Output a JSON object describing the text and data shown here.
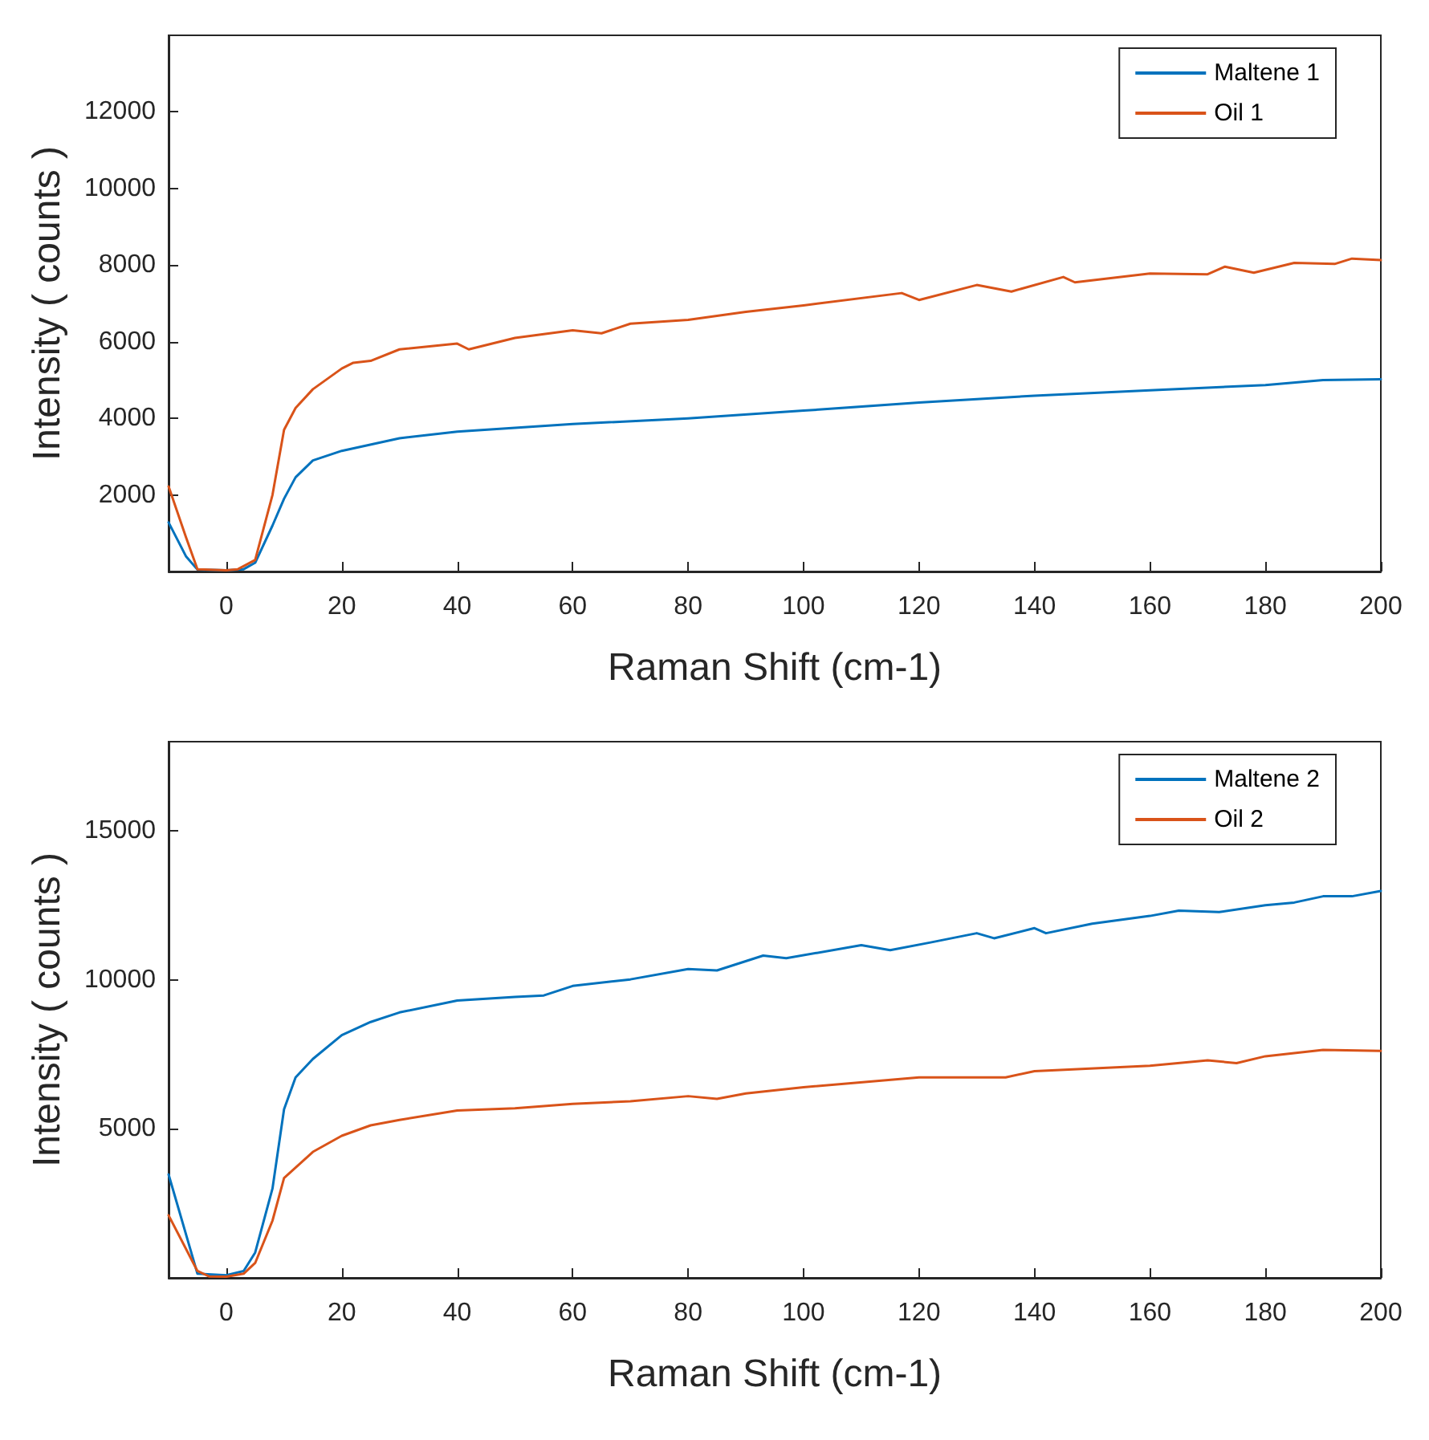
{
  "chart_data": [
    {
      "type": "line",
      "xlabel": "Raman Shift (cm-1)",
      "ylabel": "Intensity ( counts )",
      "xlim": [
        -10,
        200
      ],
      "xticks": [
        0,
        20,
        40,
        60,
        80,
        100,
        120,
        140,
        160,
        180,
        200
      ],
      "ylim": [
        0,
        14000
      ],
      "yticks": [
        2000,
        4000,
        6000,
        8000,
        10000,
        12000
      ],
      "legend": "top right",
      "grid": false,
      "line_style": "solid",
      "marker": "none",
      "series": [
        {
          "name": "Maltene 1",
          "color": "#0072bd",
          "x": [
            -10,
            -7,
            -5,
            0,
            3,
            5,
            8,
            10,
            12,
            15,
            20,
            30,
            40,
            60,
            80,
            100,
            120,
            140,
            160,
            180,
            190,
            200
          ],
          "values": [
            1280,
            400,
            50,
            30,
            60,
            230,
            1200,
            1900,
            2460,
            2900,
            3150,
            3480,
            3650,
            3850,
            4000,
            4200,
            4410,
            4590,
            4730,
            4870,
            5000,
            5020
          ]
        },
        {
          "name": "Oil 1",
          "color": "#d95319",
          "x": [
            -10,
            -7,
            -5,
            0,
            2,
            5,
            8,
            10,
            12,
            15,
            20,
            22,
            25,
            30,
            40,
            42,
            50,
            60,
            65,
            70,
            80,
            90,
            100,
            117,
            120,
            130,
            136,
            145,
            147,
            160,
            170,
            173,
            178,
            185,
            192,
            195,
            200
          ],
          "values": [
            2220,
            900,
            60,
            30,
            60,
            300,
            2000,
            3700,
            4270,
            4760,
            5300,
            5450,
            5500,
            5800,
            5950,
            5800,
            6100,
            6300,
            6220,
            6470,
            6570,
            6780,
            6950,
            7270,
            7090,
            7480,
            7310,
            7690,
            7550,
            7780,
            7760,
            7960,
            7800,
            8060,
            8030,
            8170,
            8130
          ]
        }
      ]
    },
    {
      "type": "line",
      "xlabel": "Raman Shift (cm-1)",
      "ylabel": "Intensity ( counts )",
      "xlim": [
        -10,
        200
      ],
      "xticks": [
        0,
        20,
        40,
        60,
        80,
        100,
        120,
        140,
        160,
        180,
        200
      ],
      "ylim": [
        0,
        18000
      ],
      "yticks": [
        5000,
        10000,
        15000
      ],
      "legend": "top right",
      "grid": false,
      "line_style": "solid",
      "marker": "none",
      "series": [
        {
          "name": "Maltene 2",
          "color": "#0072bd",
          "x": [
            -10,
            -5,
            0,
            3,
            5,
            8,
            10,
            12,
            15,
            20,
            25,
            30,
            40,
            50,
            55,
            60,
            70,
            80,
            85,
            93,
            97,
            110,
            115,
            122,
            130,
            133,
            140,
            142,
            150,
            160,
            165,
            172,
            180,
            185,
            190,
            195,
            200
          ],
          "values": [
            3470,
            140,
            90,
            230,
            850,
            3000,
            5660,
            6730,
            7350,
            8150,
            8590,
            8910,
            9310,
            9430,
            9480,
            9800,
            10020,
            10370,
            10320,
            10820,
            10730,
            11170,
            11000,
            11260,
            11570,
            11400,
            11740,
            11570,
            11890,
            12150,
            12330,
            12280,
            12510,
            12600,
            12810,
            12810,
            12990
          ]
        },
        {
          "name": "Oil 2",
          "color": "#d95319",
          "x": [
            -10,
            -5,
            -3,
            0,
            3,
            5,
            8,
            10,
            15,
            20,
            25,
            30,
            40,
            50,
            60,
            70,
            80,
            85,
            90,
            100,
            120,
            135,
            140,
            160,
            170,
            175,
            180,
            190,
            200
          ],
          "values": [
            2100,
            230,
            50,
            40,
            140,
            500,
            1920,
            3350,
            4230,
            4770,
            5120,
            5300,
            5620,
            5690,
            5840,
            5930,
            6100,
            6010,
            6190,
            6400,
            6730,
            6730,
            6940,
            7120,
            7300,
            7210,
            7440,
            7650,
            7620
          ]
        }
      ]
    }
  ]
}
